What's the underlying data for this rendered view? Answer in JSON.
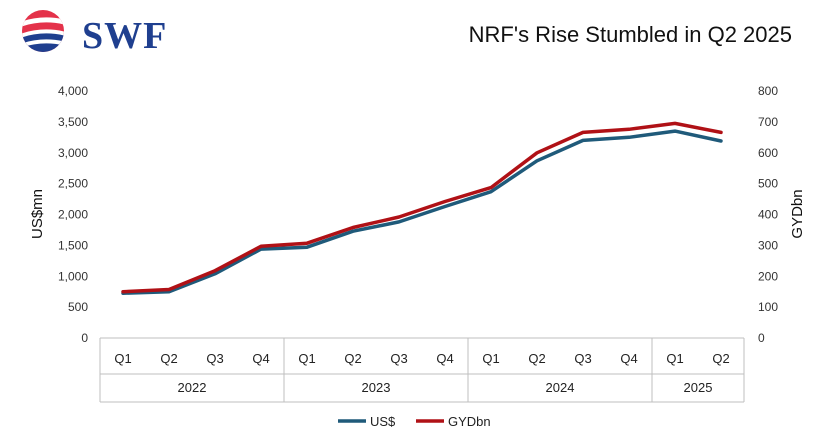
{
  "brand": {
    "name": "SWF",
    "accent": "#c8102e",
    "primary": "#1f3f8f"
  },
  "chart_data": {
    "type": "line",
    "title": "NRF's Rise Stumbled in Q2 2025",
    "ylabel": "US$mn",
    "y2label": "GYDbn",
    "ylim": [
      0,
      4000
    ],
    "y2lim": [
      0,
      800
    ],
    "yticks": [
      "0",
      "500",
      "1,000",
      "1,500",
      "2,000",
      "2,500",
      "3,000",
      "3,500",
      "4,000"
    ],
    "y2ticks": [
      "0",
      "100",
      "200",
      "300",
      "400",
      "500",
      "600",
      "700",
      "800"
    ],
    "categories": [
      "Q1",
      "Q2",
      "Q3",
      "Q4",
      "Q1",
      "Q2",
      "Q3",
      "Q4",
      "Q1",
      "Q2",
      "Q3",
      "Q4",
      "Q1",
      "Q2"
    ],
    "groups": [
      {
        "label": "2022",
        "span": 4
      },
      {
        "label": "2023",
        "span": 4
      },
      {
        "label": "2024",
        "span": 4
      },
      {
        "label": "2025",
        "span": 2
      }
    ],
    "series": [
      {
        "name": "US$",
        "axis": "left",
        "color": "#1f5a7a",
        "values": [
          725,
          750,
          1040,
          1440,
          1470,
          1730,
          1880,
          2130,
          2370,
          2870,
          3200,
          3250,
          3350,
          3190
        ]
      },
      {
        "name": "GYDbn",
        "axis": "right",
        "color": "#b01116",
        "values": [
          150,
          157,
          218,
          297,
          307,
          358,
          392,
          442,
          487,
          600,
          666,
          676,
          695,
          666
        ]
      }
    ],
    "legend": "bottom-center",
    "grid": false
  }
}
